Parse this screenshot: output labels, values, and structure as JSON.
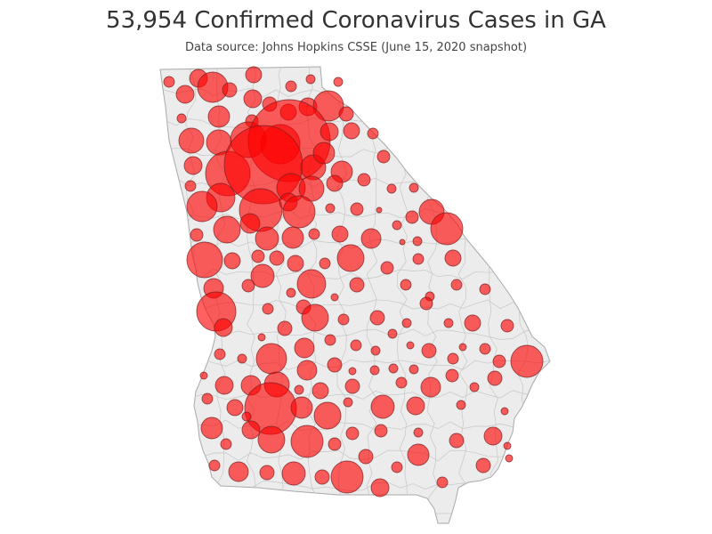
{
  "title": "53,954 Confirmed Coronavirus Cases in GA",
  "subtitle": "Data source: Johns Hopkins CSSE (June 15, 2020 snapshot)",
  "colors": {
    "state_fill": "#ececec",
    "county_line": "#c6c6c6",
    "state_outline": "#a9a9a9",
    "bubble_fill": "#ff0000",
    "bubble_stroke": "#7a1f1f"
  }
}
